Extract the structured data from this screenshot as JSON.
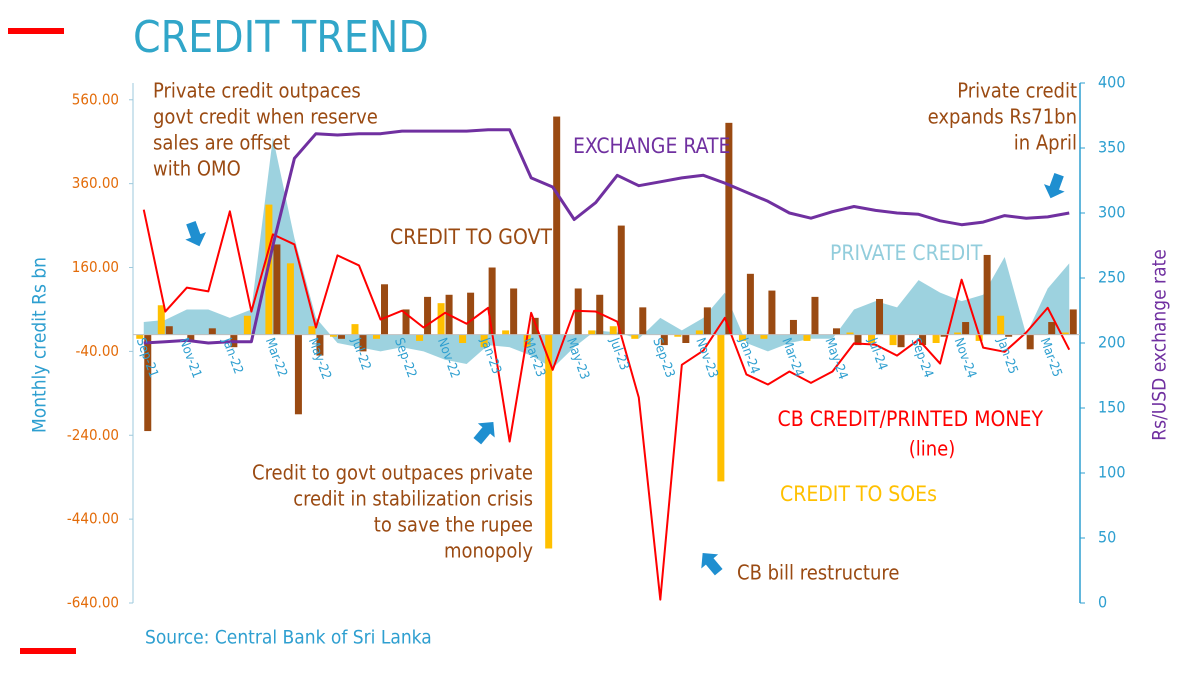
{
  "chart_data": {
    "type": "combo",
    "title": "CREDIT TREND",
    "source": "Source: Central Bank of Sri Lanka",
    "ylabel": "Monthly credit Rs bn",
    "y2label": "Rs/USD exchange rate",
    "categories": [
      "Sep-21",
      null,
      "Nov-21",
      null,
      "Jan-22",
      null,
      "Mar-22",
      null,
      "May-22",
      null,
      "Jul-22",
      null,
      "Sep-22",
      null,
      "Nov-22",
      null,
      "Jan-23",
      null,
      "Mar-23",
      null,
      "May-23",
      null,
      "Jul-23",
      null,
      "Sep-23",
      null,
      "Nov-23",
      null,
      "Jan-24",
      null,
      "Mar-24",
      null,
      "May-24",
      null,
      "Jul-24",
      null,
      "Sep-24",
      null,
      "Nov-24",
      null,
      "Jan-25",
      null,
      "Mar-25",
      null
    ],
    "ylim": [
      -640,
      600
    ],
    "yticks": [
      {
        "value": -640,
        "label": "-640.00"
      },
      {
        "value": -440,
        "label": "-440.00"
      },
      {
        "value": -240,
        "label": "-240.00"
      },
      {
        "value": -40,
        "label": "-40.00"
      },
      {
        "value": 160,
        "label": "160.00"
      },
      {
        "value": 360,
        "label": "360.00"
      },
      {
        "value": 560,
        "label": "560.00"
      }
    ],
    "y2lim": [
      0,
      400
    ],
    "y2ticks": [
      0,
      50,
      100,
      150,
      200,
      250,
      300,
      350,
      400
    ],
    "series": [
      {
        "name": "PRIVATE CREDIT",
        "type": "area",
        "color": "#92cddc",
        "values": [
          30,
          35,
          60,
          60,
          40,
          60,
          470,
          230,
          40,
          -20,
          -30,
          -40,
          -30,
          -40,
          -60,
          -70,
          -25,
          -30,
          -50,
          -80,
          -30,
          10,
          5,
          -10,
          40,
          10,
          40,
          100,
          -20,
          -40,
          -20,
          -10,
          -10,
          60,
          80,
          65,
          130,
          100,
          80,
          95,
          185,
          0,
          110,
          170
        ]
      },
      {
        "name": "CREDIT TO SOEs",
        "type": "bar",
        "color": "#ffc000",
        "values": [
          -10,
          70,
          0,
          0,
          0,
          45,
          310,
          170,
          20,
          -5,
          25,
          -10,
          0,
          -15,
          75,
          -20,
          -30,
          10,
          -30,
          -510,
          0,
          10,
          20,
          -10,
          0,
          -5,
          10,
          -350,
          -15,
          -10,
          0,
          -15,
          0,
          5,
          -20,
          -25,
          0,
          -20,
          5,
          -15,
          45,
          0,
          0,
          5
        ]
      },
      {
        "name": "CREDIT TO GOVT",
        "type": "bar",
        "color": "#9a4a12",
        "values": [
          -230,
          20,
          -15,
          15,
          -30,
          0,
          215,
          -190,
          -50,
          -10,
          -40,
          120,
          60,
          90,
          95,
          100,
          160,
          110,
          40,
          520,
          110,
          95,
          260,
          65,
          -25,
          -20,
          65,
          505,
          145,
          105,
          35,
          90,
          15,
          -25,
          85,
          -30,
          -25,
          -5,
          30,
          190,
          -5,
          -35,
          30,
          60
        ]
      },
      {
        "name": "CB CREDIT/PRINTED MONEY",
        "type": "line",
        "color": "#ff0000",
        "values": [
          298,
          55,
          112,
          103,
          294,
          55,
          239,
          215,
          17,
          189,
          165,
          36,
          57,
          17,
          52,
          26,
          64,
          -255,
          52,
          -84,
          57,
          55,
          31,
          -150,
          -632,
          -72,
          -38,
          40,
          -95,
          -119,
          -88,
          -115,
          -88,
          -21,
          -24,
          -50,
          -12,
          -69,
          131,
          -31,
          -41,
          5,
          64,
          -36
        ]
      },
      {
        "name": "EXCHANGE RATE",
        "type": "line",
        "axis": "y2",
        "color": "#7030a0",
        "values": [
          200,
          201,
          202,
          200,
          201,
          201,
          275,
          342,
          361,
          360,
          361,
          361,
          363,
          363,
          363,
          363,
          364,
          364,
          327,
          320,
          295,
          308,
          329,
          321,
          324,
          327,
          329,
          323,
          316,
          309,
          300,
          296,
          301,
          305,
          302,
          300,
          299,
          294,
          291,
          293,
          298,
          296,
          297,
          300
        ]
      }
    ],
    "annotations": [
      {
        "text": [
          "Private credit outpaces",
          "govt credit when reserve",
          "sales are offset",
          "with OMO"
        ],
        "color": "#9a4a12"
      },
      {
        "text": [
          "Private credit",
          "expands Rs71bn",
          "in April"
        ],
        "color": "#9a4a12"
      },
      {
        "text": [
          "Credit to govt outpaces private",
          "credit in stabilization crisis",
          "to save the rupee",
          "monopoly"
        ],
        "color": "#9a4a12"
      },
      {
        "text": [
          "CB bill restructure"
        ],
        "color": "#9a4a12"
      },
      {
        "text": [
          "(line)"
        ],
        "color": "#ff0000"
      }
    ]
  }
}
